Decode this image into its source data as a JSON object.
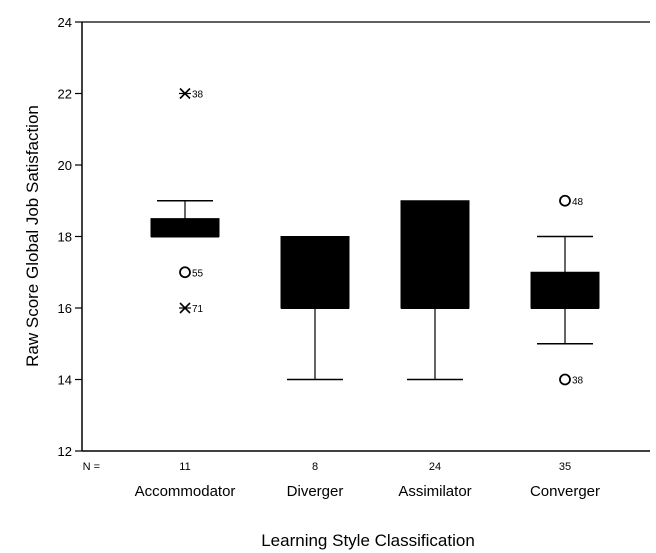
{
  "chart_data": {
    "type": "box",
    "title": "",
    "xlabel": "Learning Style Classification",
    "ylabel": "Raw Score Global Job Satisfaction",
    "ylim": [
      12,
      24
    ],
    "yticks": [
      12,
      14,
      16,
      18,
      20,
      22,
      24
    ],
    "n_label": "N =",
    "grid": false,
    "categories": [
      "Accommodator",
      "Diverger",
      "Assimilator",
      "Converger"
    ],
    "n_values": [
      "11",
      "8",
      "24",
      "35"
    ],
    "boxes": [
      {
        "category": "Accommodator",
        "n": 11,
        "whisker_low": 18,
        "q1": 18,
        "median": 18,
        "q3": 18.5,
        "whisker_high": 19,
        "outliers": [
          {
            "value": 22,
            "marker": "star",
            "label": "38"
          },
          {
            "value": 17,
            "marker": "circle",
            "label": "55"
          },
          {
            "value": 16,
            "marker": "star",
            "label": "71"
          }
        ]
      },
      {
        "category": "Diverger",
        "n": 8,
        "whisker_low": 14,
        "q1": 16,
        "median": 16,
        "q3": 18,
        "whisker_high": 18,
        "outliers": []
      },
      {
        "category": "Assimilator",
        "n": 24,
        "whisker_low": 14,
        "q1": 16,
        "median": 16,
        "q3": 19,
        "whisker_high": 19,
        "outliers": []
      },
      {
        "category": "Converger",
        "n": 35,
        "whisker_low": 15,
        "q1": 16,
        "median": 16,
        "q3": 17,
        "whisker_high": 18,
        "outliers": [
          {
            "value": 19,
            "marker": "circle",
            "label": "48"
          },
          {
            "value": 14,
            "marker": "circle",
            "label": "38"
          }
        ]
      }
    ],
    "colors": {
      "box_fill": "#000000",
      "line": "#000000"
    }
  }
}
